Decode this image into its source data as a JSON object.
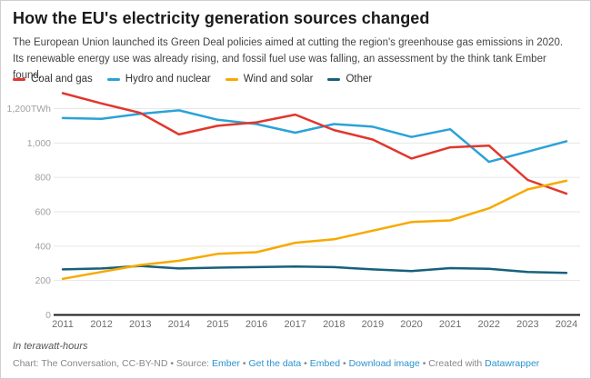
{
  "header": {
    "title": "How the EU's electricity generation sources changed",
    "subtitle": "The European Union launched its Green Deal policies aimed at cutting the region's greenhouse gas emissions in 2020. Its renewable energy use was already rising, and fossil fuel use was falling, an assessment by the think tank Ember found."
  },
  "colors": {
    "coal_gas": "#e0372e",
    "hydro_nuclear": "#2aa2d8",
    "wind_solar": "#f7a900",
    "other": "#17607c",
    "gridline": "#e6e6e6",
    "baseline": "#1a1a1a",
    "y_label": "#a0a0a0",
    "x_label": "#6e6e6e",
    "link": "#2a93ce"
  },
  "legend": [
    {
      "label": "Coal and gas",
      "color": "#e0372e"
    },
    {
      "label": "Hydro and nuclear",
      "color": "#2aa2d8"
    },
    {
      "label": "Wind and solar",
      "color": "#f7a900"
    },
    {
      "label": "Other",
      "color": "#17607c"
    }
  ],
  "chart_data": {
    "type": "line",
    "title": "How the EU's electricity generation sources changed",
    "unit": "TWh",
    "x": [
      2011,
      2012,
      2013,
      2014,
      2015,
      2016,
      2017,
      2018,
      2019,
      2020,
      2021,
      2022,
      2023,
      2024
    ],
    "series": [
      {
        "name": "Other",
        "color": "#17607c",
        "values": [
          265,
          270,
          285,
          270,
          275,
          278,
          282,
          278,
          265,
          255,
          272,
          268,
          250,
          245
        ]
      },
      {
        "name": "Hydro and nuclear",
        "color": "#2aa2d8",
        "values": [
          1145,
          1140,
          1170,
          1190,
          1135,
          1110,
          1060,
          1110,
          1095,
          1035,
          1080,
          890,
          950,
          1010
        ]
      },
      {
        "name": "Coal and gas",
        "color": "#e0372e",
        "values": [
          1290,
          1230,
          1175,
          1050,
          1100,
          1120,
          1165,
          1075,
          1020,
          910,
          975,
          985,
          785,
          705
        ]
      },
      {
        "name": "Wind and solar",
        "color": "#f7a900",
        "values": [
          210,
          250,
          290,
          315,
          355,
          365,
          420,
          440,
          490,
          540,
          550,
          620,
          730,
          780
        ]
      }
    ],
    "yticks": [
      {
        "value": 0,
        "label": "0"
      },
      {
        "value": 200,
        "label": "200"
      },
      {
        "value": 400,
        "label": "400"
      },
      {
        "value": 600,
        "label": "600"
      },
      {
        "value": 800,
        "label": "800"
      },
      {
        "value": 1000,
        "label": "1,000"
      },
      {
        "value": 1200,
        "label": "1,200TWh"
      }
    ],
    "ylim": [
      0,
      1300
    ],
    "grid": true,
    "legend_position": "top"
  },
  "footer": {
    "note": "In terawatt-hours",
    "byline_segments": [
      {
        "text": "Chart: The Conversation, CC-BY-ND • Source: ",
        "link": false
      },
      {
        "text": "Ember",
        "link": true,
        "name": "link-ember"
      },
      {
        "text": " • ",
        "link": false
      },
      {
        "text": "Get the data",
        "link": true,
        "name": "link-get-the-data"
      },
      {
        "text": " • ",
        "link": false
      },
      {
        "text": "Embed",
        "link": true,
        "name": "link-embed"
      },
      {
        "text": " • ",
        "link": false
      },
      {
        "text": "Download image",
        "link": true,
        "name": "link-download-image"
      },
      {
        "text": " • Created with ",
        "link": false
      },
      {
        "text": "Datawrapper",
        "link": true,
        "name": "link-datawrapper"
      }
    ]
  }
}
